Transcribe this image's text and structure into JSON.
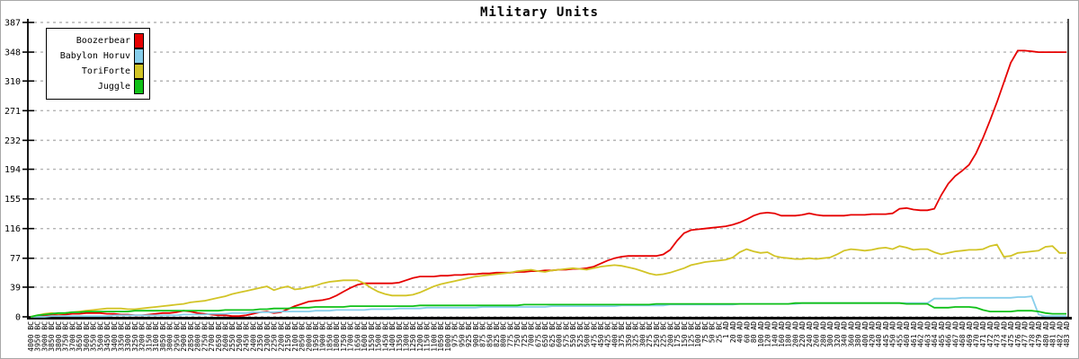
{
  "chart_data": {
    "type": "line",
    "title": "Military Units",
    "xlabel": "",
    "ylabel": "",
    "ylim": [
      0,
      387
    ],
    "y_ticks": [
      0,
      39,
      77,
      116,
      155,
      194,
      232,
      271,
      310,
      348,
      387
    ],
    "grid": "horizontal-dashed",
    "legend_position": "top-left",
    "x_labels": [
      "4000 BC",
      "3950 BC",
      "3900 BC",
      "3850 BC",
      "3800 BC",
      "3750 BC",
      "3700 BC",
      "3650 BC",
      "3600 BC",
      "3550 BC",
      "3500 BC",
      "3450 BC",
      "3400 BC",
      "3350 BC",
      "3300 BC",
      "3250 BC",
      "3200 BC",
      "3150 BC",
      "3100 BC",
      "3050 BC",
      "3000 BC",
      "2950 BC",
      "2900 BC",
      "2850 BC",
      "2800 BC",
      "2750 BC",
      "2700 BC",
      "2650 BC",
      "2600 BC",
      "2550 BC",
      "2500 BC",
      "2450 BC",
      "2400 BC",
      "2350 BC",
      "2300 BC",
      "2250 BC",
      "2200 BC",
      "2150 BC",
      "2100 BC",
      "2050 BC",
      "2000 BC",
      "1950 BC",
      "1900 BC",
      "1850 BC",
      "1800 BC",
      "1750 BC",
      "1700 BC",
      "1650 BC",
      "1600 BC",
      "1550 BC",
      "1500 BC",
      "1450 BC",
      "1400 BC",
      "1350 BC",
      "1300 BC",
      "1250 BC",
      "1200 BC",
      "1150 BC",
      "1100 BC",
      "1050 BC",
      "1000 BC",
      "975 BC",
      "950 BC",
      "925 BC",
      "900 BC",
      "875 BC",
      "850 BC",
      "825 BC",
      "800 BC",
      "775 BC",
      "750 BC",
      "725 BC",
      "700 BC",
      "675 BC",
      "650 BC",
      "625 BC",
      "600 BC",
      "575 BC",
      "550 BC",
      "525 BC",
      "500 BC",
      "475 BC",
      "450 BC",
      "425 BC",
      "400 BC",
      "375 BC",
      "350 BC",
      "325 BC",
      "300 BC",
      "275 BC",
      "250 BC",
      "225 BC",
      "200 BC",
      "175 BC",
      "150 BC",
      "125 BC",
      "100 BC",
      "75 BC",
      "50 BC",
      "25 BC",
      "1 AD",
      "20 AD",
      "40 AD",
      "60 AD",
      "80 AD",
      "100 AD",
      "120 AD",
      "140 AD",
      "160 AD",
      "180 AD",
      "200 AD",
      "220 AD",
      "240 AD",
      "260 AD",
      "280 AD",
      "300 AD",
      "320 AD",
      "340 AD",
      "360 AD",
      "380 AD",
      "400 AD",
      "420 AD",
      "440 AD",
      "445 AD",
      "450 AD",
      "455 AD",
      "460 AD",
      "461 AD",
      "462 AD",
      "463 AD",
      "464 AD",
      "465 AD",
      "466 AD",
      "467 AD",
      "468 AD",
      "469 AD",
      "470 AD",
      "471 AD",
      "472 AD",
      "473 AD",
      "474 AD",
      "475 AD",
      "476 AD",
      "477 AD",
      "478 AD",
      "479 AD",
      "480 AD",
      "481 AD",
      "482 AD",
      "483 AD"
    ],
    "series": [
      {
        "name": "Boozerbear",
        "color": "#e60000",
        "values": [
          0,
          1,
          1,
          2,
          3,
          3,
          4,
          4,
          5,
          5,
          5,
          4,
          4,
          3,
          3,
          2,
          2,
          3,
          4,
          5,
          5,
          6,
          8,
          7,
          5,
          4,
          3,
          2,
          2,
          1,
          1,
          2,
          4,
          6,
          7,
          5,
          6,
          10,
          14,
          17,
          20,
          21,
          22,
          24,
          28,
          33,
          38,
          42,
          44,
          44,
          44,
          44,
          44,
          45,
          48,
          51,
          53,
          53,
          53,
          54,
          54,
          55,
          55,
          56,
          56,
          57,
          57,
          58,
          58,
          58,
          59,
          59,
          60,
          60,
          61,
          61,
          62,
          62,
          63,
          63,
          64,
          66,
          70,
          74,
          77,
          79,
          80,
          80,
          80,
          80,
          80,
          82,
          88,
          100,
          110,
          114,
          115,
          116,
          117,
          118,
          119,
          121,
          124,
          128,
          133,
          136,
          137,
          136,
          133,
          133,
          133,
          134,
          136,
          134,
          133,
          133,
          133,
          133,
          134,
          134,
          134,
          135,
          135,
          135,
          136,
          142,
          143,
          141,
          140,
          140,
          142,
          160,
          175,
          185,
          192,
          200,
          215,
          235,
          258,
          282,
          308,
          334,
          350,
          350,
          349,
          348,
          348,
          348,
          348,
          348
        ]
      },
      {
        "name": "Babylon Horuv",
        "color": "#87ceeb",
        "values": [
          0,
          0,
          0,
          1,
          1,
          1,
          1,
          1,
          1,
          1,
          1,
          1,
          2,
          2,
          2,
          2,
          2,
          2,
          2,
          2,
          2,
          2,
          3,
          3,
          3,
          3,
          4,
          4,
          4,
          5,
          5,
          5,
          6,
          6,
          6,
          6,
          7,
          7,
          7,
          7,
          7,
          8,
          8,
          8,
          9,
          9,
          9,
          9,
          9,
          10,
          10,
          10,
          10,
          11,
          11,
          11,
          11,
          12,
          12,
          12,
          12,
          12,
          12,
          12,
          12,
          13,
          13,
          13,
          13,
          13,
          13,
          13,
          13,
          13,
          13,
          14,
          14,
          14,
          14,
          14,
          14,
          14,
          14,
          14,
          14,
          15,
          15,
          15,
          15,
          15,
          15,
          15,
          16,
          16,
          16,
          16,
          16,
          16,
          16,
          16,
          16,
          16,
          17,
          17,
          17,
          17,
          17,
          17,
          17,
          17,
          17,
          18,
          18,
          18,
          18,
          18,
          18,
          18,
          18,
          18,
          18,
          18,
          18,
          18,
          18,
          18,
          18,
          18,
          18,
          18,
          24,
          24,
          24,
          24,
          25,
          25,
          25,
          25,
          25,
          25,
          25,
          25,
          26,
          26,
          27,
          3,
          1,
          1,
          1,
          1
        ]
      },
      {
        "name": "ToriForte",
        "color": "#d2c426",
        "values": [
          0,
          2,
          4,
          5,
          4,
          5,
          6,
          7,
          8,
          9,
          10,
          11,
          11,
          11,
          10,
          10,
          11,
          12,
          13,
          14,
          15,
          16,
          17,
          19,
          20,
          21,
          23,
          25,
          27,
          30,
          32,
          34,
          36,
          38,
          40,
          35,
          38,
          40,
          36,
          37,
          39,
          41,
          44,
          46,
          47,
          48,
          48,
          48,
          44,
          38,
          33,
          30,
          28,
          28,
          28,
          29,
          32,
          36,
          40,
          43,
          45,
          47,
          49,
          51,
          53,
          54,
          55,
          56,
          57,
          58,
          60,
          61,
          62,
          60,
          59,
          61,
          62,
          63,
          64,
          63,
          62,
          64,
          66,
          67,
          68,
          67,
          65,
          63,
          60,
          57,
          55,
          56,
          58,
          61,
          64,
          68,
          70,
          72,
          73,
          74,
          75,
          78,
          85,
          89,
          86,
          84,
          85,
          80,
          78,
          77,
          76,
          76,
          77,
          76,
          77,
          78,
          82,
          87,
          89,
          88,
          87,
          88,
          90,
          91,
          89,
          93,
          91,
          88,
          89,
          89,
          85,
          82,
          84,
          86,
          87,
          88,
          88,
          89,
          93,
          95,
          79,
          80,
          84,
          85,
          86,
          87,
          92,
          93,
          84,
          84
        ]
      },
      {
        "name": "Juggle",
        "color": "#10c018",
        "values": [
          0,
          2,
          3,
          4,
          5,
          5,
          6,
          6,
          7,
          7,
          7,
          7,
          7,
          7,
          7,
          8,
          8,
          8,
          8,
          8,
          8,
          8,
          8,
          8,
          8,
          8,
          8,
          8,
          9,
          9,
          9,
          9,
          9,
          10,
          10,
          11,
          11,
          11,
          12,
          12,
          12,
          13,
          13,
          13,
          13,
          13,
          14,
          14,
          14,
          14,
          14,
          14,
          14,
          14,
          14,
          14,
          15,
          15,
          15,
          15,
          15,
          15,
          15,
          15,
          15,
          15,
          15,
          15,
          15,
          15,
          15,
          16,
          16,
          16,
          16,
          16,
          16,
          16,
          16,
          16,
          16,
          16,
          16,
          16,
          16,
          16,
          16,
          16,
          16,
          16,
          17,
          17,
          17,
          17,
          17,
          17,
          17,
          17,
          17,
          17,
          17,
          17,
          17,
          17,
          17,
          17,
          17,
          17,
          17,
          17,
          18,
          18,
          18,
          18,
          18,
          18,
          18,
          18,
          18,
          18,
          18,
          18,
          18,
          18,
          18,
          18,
          17,
          17,
          17,
          17,
          12,
          12,
          12,
          13,
          13,
          13,
          12,
          9,
          7,
          7,
          7,
          7,
          8,
          8,
          8,
          7,
          5,
          4,
          4,
          4
        ]
      }
    ]
  },
  "colors": {
    "axis": "#000000",
    "grid": "#b4b4b4",
    "background": "#ffffff",
    "border": "#a8a8a8"
  }
}
